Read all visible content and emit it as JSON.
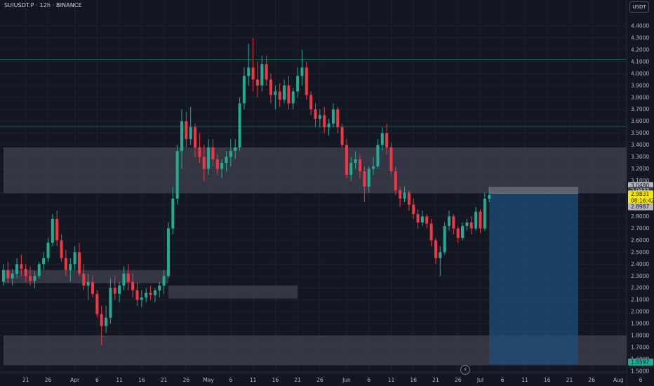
{
  "header": {
    "symbol": "SUIUSDT.P · 12h · BINANCE",
    "currency": "USDT"
  },
  "chart_data": {
    "type": "candlestick",
    "ylim": [
      1.5,
      4.5
    ],
    "y_ticks": [
      "4.4000",
      "4.3000",
      "4.2000",
      "4.1000",
      "4.0000",
      "3.9000",
      "3.8000",
      "3.7000",
      "3.6000",
      "3.5000",
      "3.4000",
      "3.3000",
      "3.2000",
      "3.1000",
      "3.0000",
      "2.9000",
      "2.8000",
      "2.7000",
      "2.6000",
      "2.5000",
      "2.4000",
      "2.3000",
      "2.2000",
      "2.1000",
      "2.0000",
      "1.9000",
      "1.8000",
      "1.7000",
      "1.6000",
      "1.5000"
    ],
    "x_ticks": [
      "21",
      "26",
      "Apr",
      "6",
      "11",
      "16",
      "21",
      "26",
      "May",
      "6",
      "11",
      "16",
      "21",
      "26",
      "Jun",
      "6",
      "11",
      "16",
      "21",
      "26",
      "Jul",
      "6",
      "11",
      "16",
      "21",
      "26",
      "Aug",
      "6"
    ],
    "up_color": "#22ab94",
    "down_color": "#f23645",
    "horizontal_lines": [
      {
        "price": 4.1201,
        "label": "4.1201",
        "color": "#22ab94"
      },
      {
        "price": 3.5562,
        "label": "3.5562",
        "color": "#22ab94"
      }
    ],
    "zones": [
      {
        "from_date": "2025-03-16",
        "to_date": "2025-08-20",
        "low": 2.995,
        "high": 3.38
      },
      {
        "from_date": "2025-03-16",
        "to_date": "2025-04-22",
        "low": 2.24,
        "high": 2.35
      },
      {
        "from_date": "2025-04-22",
        "to_date": "2025-05-21",
        "low": 2.11,
        "high": 2.22
      },
      {
        "from_date": "2025-03-16",
        "to_date": "2025-08-20",
        "low": 1.55,
        "high": 1.8
      }
    ],
    "position": {
      "from_date": "2025-07-03",
      "to_date": "2025-07-23",
      "entry": 2.9933,
      "stop": 3.048,
      "target": 1.5597
    },
    "price_tags": [
      {
        "price": 3.048,
        "label": "3.0480",
        "bg": "#b2b5be",
        "fg": "#131722"
      },
      {
        "price": 2.9933,
        "label": "2.9933",
        "bg": "#363a45",
        "fg": "#d1d4dc"
      },
      {
        "price": 2.9831,
        "label": "2.9831",
        "sub": "08:16:42",
        "bg": "#f7e600",
        "fg": "#131722"
      },
      {
        "price": 2.8987,
        "label": "2.8987",
        "bg": "#b2b5be",
        "fg": "#131722"
      },
      {
        "price": 1.5597,
        "label": "1.5597",
        "bg": "#22ab94",
        "fg": "#131722"
      }
    ],
    "bars": [
      [
        "2025-03-16",
        2.25,
        2.4,
        2.22,
        2.35
      ],
      [
        "2025-03-17",
        2.35,
        2.42,
        2.24,
        2.28
      ],
      [
        "2025-03-18",
        2.28,
        2.36,
        2.22,
        2.32
      ],
      [
        "2025-03-19",
        2.32,
        2.45,
        2.28,
        2.4
      ],
      [
        "2025-03-20",
        2.4,
        2.48,
        2.3,
        2.36
      ],
      [
        "2025-03-21",
        2.36,
        2.4,
        2.25,
        2.3
      ],
      [
        "2025-03-22",
        2.3,
        2.38,
        2.22,
        2.26
      ],
      [
        "2025-03-23",
        2.26,
        2.34,
        2.2,
        2.3
      ],
      [
        "2025-03-24",
        2.3,
        2.42,
        2.28,
        2.4
      ],
      [
        "2025-03-25",
        2.4,
        2.5,
        2.35,
        2.45
      ],
      [
        "2025-03-26",
        2.45,
        2.62,
        2.42,
        2.58
      ],
      [
        "2025-03-27",
        2.58,
        2.82,
        2.55,
        2.78
      ],
      [
        "2025-03-28",
        2.78,
        2.85,
        2.55,
        2.6
      ],
      [
        "2025-03-29",
        2.6,
        2.65,
        2.42,
        2.45
      ],
      [
        "2025-03-30",
        2.45,
        2.52,
        2.3,
        2.35
      ],
      [
        "2025-03-31",
        2.35,
        2.45,
        2.25,
        2.4
      ],
      [
        "2025-04-01",
        2.4,
        2.55,
        2.35,
        2.5
      ],
      [
        "2025-04-02",
        2.5,
        2.58,
        2.3,
        2.32
      ],
      [
        "2025-04-03",
        2.32,
        2.4,
        2.18,
        2.22
      ],
      [
        "2025-04-04",
        2.22,
        2.32,
        2.1,
        2.25
      ],
      [
        "2025-04-05",
        2.25,
        2.3,
        2.12,
        2.15
      ],
      [
        "2025-04-06",
        2.15,
        2.18,
        1.95,
        1.98
      ],
      [
        "2025-04-07",
        1.98,
        2.05,
        1.72,
        1.88
      ],
      [
        "2025-04-08",
        1.88,
        2.05,
        1.82,
        1.95
      ],
      [
        "2025-04-09",
        1.95,
        2.28,
        1.9,
        2.2
      ],
      [
        "2025-04-10",
        2.2,
        2.3,
        2.1,
        2.15
      ],
      [
        "2025-04-11",
        2.15,
        2.25,
        2.08,
        2.22
      ],
      [
        "2025-04-12",
        2.22,
        2.38,
        2.18,
        2.32
      ],
      [
        "2025-04-13",
        2.32,
        2.4,
        2.18,
        2.25
      ],
      [
        "2025-04-14",
        2.25,
        2.32,
        2.12,
        2.18
      ],
      [
        "2025-04-15",
        2.18,
        2.25,
        2.05,
        2.1
      ],
      [
        "2025-04-16",
        2.1,
        2.18,
        2.04,
        2.12
      ],
      [
        "2025-04-17",
        2.12,
        2.2,
        2.08,
        2.16
      ],
      [
        "2025-04-18",
        2.16,
        2.22,
        2.1,
        2.14
      ],
      [
        "2025-04-19",
        2.14,
        2.2,
        2.08,
        2.18
      ],
      [
        "2025-04-20",
        2.18,
        2.25,
        2.12,
        2.22
      ],
      [
        "2025-04-21",
        2.22,
        2.35,
        2.15,
        2.3
      ],
      [
        "2025-04-22",
        2.3,
        2.75,
        2.28,
        2.7
      ],
      [
        "2025-04-23",
        2.7,
        3.05,
        2.65,
        2.95
      ],
      [
        "2025-04-24",
        2.95,
        3.4,
        2.9,
        3.35
      ],
      [
        "2025-04-25",
        3.35,
        3.7,
        3.2,
        3.6
      ],
      [
        "2025-04-26",
        3.6,
        3.68,
        3.38,
        3.45
      ],
      [
        "2025-04-27",
        3.45,
        3.72,
        3.4,
        3.55
      ],
      [
        "2025-04-28",
        3.55,
        3.58,
        3.3,
        3.38
      ],
      [
        "2025-04-29",
        3.38,
        3.5,
        3.25,
        3.3
      ],
      [
        "2025-04-30",
        3.3,
        3.4,
        3.1,
        3.2
      ],
      [
        "2025-05-01",
        3.2,
        3.45,
        3.15,
        3.38
      ],
      [
        "2025-05-02",
        3.38,
        3.45,
        3.22,
        3.28
      ],
      [
        "2025-05-03",
        3.28,
        3.32,
        3.15,
        3.2
      ],
      [
        "2025-05-04",
        3.2,
        3.28,
        3.12,
        3.25
      ],
      [
        "2025-05-05",
        3.25,
        3.35,
        3.18,
        3.3
      ],
      [
        "2025-05-06",
        3.3,
        3.45,
        3.22,
        3.35
      ],
      [
        "2025-05-07",
        3.35,
        3.45,
        3.28,
        3.38
      ],
      [
        "2025-05-08",
        3.38,
        3.8,
        3.35,
        3.75
      ],
      [
        "2025-05-09",
        3.75,
        4.05,
        3.7,
        3.98
      ],
      [
        "2025-05-10",
        3.98,
        4.25,
        3.9,
        4.05
      ],
      [
        "2025-05-11",
        4.05,
        4.3,
        3.85,
        3.95
      ],
      [
        "2025-05-12",
        3.95,
        4.1,
        3.8,
        3.9
      ],
      [
        "2025-05-13",
        3.9,
        4.15,
        3.85,
        4.08
      ],
      [
        "2025-05-14",
        4.08,
        4.15,
        3.9,
        3.95
      ],
      [
        "2025-05-15",
        3.95,
        4.0,
        3.75,
        3.82
      ],
      [
        "2025-05-16",
        3.82,
        3.9,
        3.7,
        3.85
      ],
      [
        "2025-05-17",
        3.85,
        3.92,
        3.72,
        3.78
      ],
      [
        "2025-05-18",
        3.78,
        3.95,
        3.75,
        3.9
      ],
      [
        "2025-05-19",
        3.9,
        3.98,
        3.7,
        3.75
      ],
      [
        "2025-05-20",
        3.75,
        3.88,
        3.7,
        3.85
      ],
      [
        "2025-05-21",
        3.85,
        4.05,
        3.8,
        3.98
      ],
      [
        "2025-05-22",
        3.98,
        4.2,
        3.9,
        4.05
      ],
      [
        "2025-05-23",
        4.05,
        4.1,
        3.78,
        3.82
      ],
      [
        "2025-05-24",
        3.82,
        3.85,
        3.65,
        3.7
      ],
      [
        "2025-05-25",
        3.7,
        3.75,
        3.55,
        3.62
      ],
      [
        "2025-05-26",
        3.62,
        3.7,
        3.55,
        3.65
      ],
      [
        "2025-05-27",
        3.65,
        3.72,
        3.5,
        3.55
      ],
      [
        "2025-05-28",
        3.55,
        3.62,
        3.48,
        3.58
      ],
      [
        "2025-05-29",
        3.58,
        3.75,
        3.55,
        3.7
      ],
      [
        "2025-05-30",
        3.7,
        3.72,
        3.5,
        3.55
      ],
      [
        "2025-05-31",
        3.55,
        3.58,
        3.38,
        3.4
      ],
      [
        "2025-06-01",
        3.4,
        3.45,
        3.12,
        3.15
      ],
      [
        "2025-06-02",
        3.15,
        3.3,
        3.1,
        3.25
      ],
      [
        "2025-06-03",
        3.25,
        3.35,
        3.2,
        3.28
      ],
      [
        "2025-06-04",
        3.28,
        3.32,
        3.12,
        3.18
      ],
      [
        "2025-06-05",
        3.18,
        3.22,
        2.92,
        3.05
      ],
      [
        "2025-06-06",
        3.05,
        3.22,
        3.0,
        3.2
      ],
      [
        "2025-06-07",
        3.2,
        3.3,
        3.15,
        3.22
      ],
      [
        "2025-06-08",
        3.22,
        3.45,
        3.2,
        3.4
      ],
      [
        "2025-06-09",
        3.4,
        3.55,
        3.35,
        3.5
      ],
      [
        "2025-06-10",
        3.5,
        3.58,
        3.32,
        3.38
      ],
      [
        "2025-06-11",
        3.38,
        3.42,
        3.15,
        3.18
      ],
      [
        "2025-06-12",
        3.18,
        3.22,
        2.98,
        3.02
      ],
      [
        "2025-06-13",
        3.02,
        3.05,
        2.88,
        2.95
      ],
      [
        "2025-06-14",
        2.95,
        3.05,
        2.92,
        3.0
      ],
      [
        "2025-06-15",
        3.0,
        3.02,
        2.85,
        2.9
      ],
      [
        "2025-06-16",
        2.9,
        2.95,
        2.78,
        2.82
      ],
      [
        "2025-06-17",
        2.82,
        2.86,
        2.7,
        2.75
      ],
      [
        "2025-06-18",
        2.75,
        2.85,
        2.72,
        2.8
      ],
      [
        "2025-06-19",
        2.8,
        2.82,
        2.7,
        2.74
      ],
      [
        "2025-06-20",
        2.74,
        2.78,
        2.55,
        2.6
      ],
      [
        "2025-06-21",
        2.6,
        2.62,
        2.4,
        2.45
      ],
      [
        "2025-06-22",
        2.45,
        2.55,
        2.3,
        2.5
      ],
      [
        "2025-06-23",
        2.5,
        2.75,
        2.48,
        2.72
      ],
      [
        "2025-06-24",
        2.72,
        2.85,
        2.68,
        2.8
      ],
      [
        "2025-06-25",
        2.8,
        2.82,
        2.65,
        2.7
      ],
      [
        "2025-06-26",
        2.7,
        2.72,
        2.58,
        2.62
      ],
      [
        "2025-06-27",
        2.62,
        2.75,
        2.6,
        2.72
      ],
      [
        "2025-06-28",
        2.72,
        2.78,
        2.68,
        2.75
      ],
      [
        "2025-06-29",
        2.75,
        2.8,
        2.65,
        2.7
      ],
      [
        "2025-06-30",
        2.7,
        2.88,
        2.68,
        2.84
      ],
      [
        "2025-07-01",
        2.84,
        2.86,
        2.66,
        2.7
      ],
      [
        "2025-07-02",
        2.7,
        3.0,
        2.68,
        2.95
      ],
      [
        "2025-07-03",
        2.95,
        3.05,
        2.92,
        2.98
      ]
    ]
  }
}
